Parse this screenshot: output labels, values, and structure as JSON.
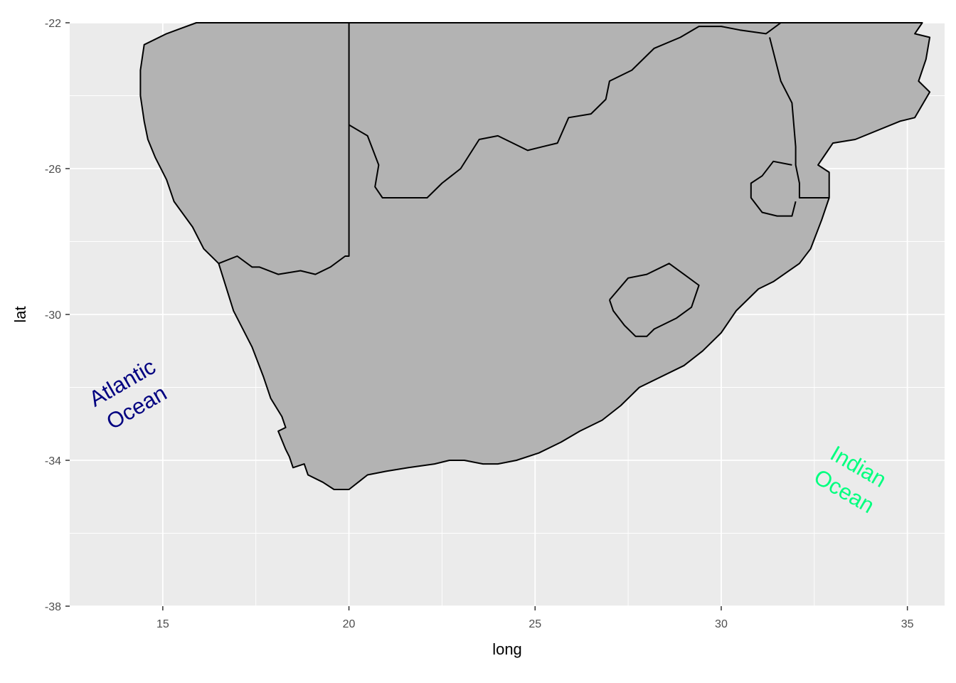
{
  "chart_data": {
    "type": "map",
    "xlabel": "long",
    "ylabel": "lat",
    "xlim": [
      12.5,
      36.0
    ],
    "ylim": [
      -38,
      -22
    ],
    "x_ticks": [
      15,
      20,
      25,
      30,
      35
    ],
    "x_tick_labels": [
      "15",
      "20",
      "25",
      "30",
      "35"
    ],
    "y_ticks": [
      -22,
      -26,
      -30,
      -34,
      -38
    ],
    "y_tick_labels": [
      "-22",
      "-26",
      "-30",
      "-34",
      "-38"
    ],
    "grid": true,
    "panel_background": "#ebebeb",
    "land_fill": "#b3b3b3",
    "border_color": "#000000",
    "annotations": [
      {
        "lines": [
          "Atlantic",
          "Ocean"
        ],
        "long": 14.1,
        "lat": -32.2,
        "angle": 30,
        "color": "#000080"
      },
      {
        "lines": [
          "Indian",
          "Ocean"
        ],
        "long": 33.5,
        "lat": -34.5,
        "angle": -30,
        "color": "#00ff7f"
      }
    ],
    "land_outline": [
      [
        15.9,
        -22
      ],
      [
        17.4,
        -22
      ],
      [
        19.8,
        -22
      ],
      [
        21.0,
        -22
      ],
      [
        23.0,
        -22
      ],
      [
        28.0,
        -22
      ],
      [
        29.2,
        -22
      ],
      [
        30.6,
        -22
      ],
      [
        31.6,
        -22
      ],
      [
        33.5,
        -22
      ],
      [
        35.4,
        -22
      ],
      [
        35.2,
        -22.3
      ],
      [
        35.6,
        -22.4
      ],
      [
        35.5,
        -23.0
      ],
      [
        35.3,
        -23.6
      ],
      [
        35.6,
        -23.9
      ],
      [
        35.2,
        -24.6
      ],
      [
        34.8,
        -24.7
      ],
      [
        33.6,
        -25.2
      ],
      [
        33.0,
        -25.3
      ],
      [
        32.8,
        -25.6
      ],
      [
        32.6,
        -25.9
      ],
      [
        32.9,
        -26.1
      ],
      [
        32.9,
        -26.8
      ],
      [
        32.7,
        -27.4
      ],
      [
        32.4,
        -28.2
      ],
      [
        32.1,
        -28.6
      ],
      [
        31.4,
        -29.1
      ],
      [
        31.0,
        -29.3
      ],
      [
        30.4,
        -29.9
      ],
      [
        30.0,
        -30.5
      ],
      [
        29.5,
        -31.0
      ],
      [
        29.0,
        -31.4
      ],
      [
        27.8,
        -32.0
      ],
      [
        27.3,
        -32.5
      ],
      [
        26.8,
        -32.9
      ],
      [
        26.2,
        -33.2
      ],
      [
        25.7,
        -33.5
      ],
      [
        25.1,
        -33.8
      ],
      [
        24.5,
        -34.0
      ],
      [
        24.0,
        -34.1
      ],
      [
        23.6,
        -34.1
      ],
      [
        23.1,
        -34.0
      ],
      [
        22.7,
        -34.0
      ],
      [
        22.3,
        -34.1
      ],
      [
        21.6,
        -34.2
      ],
      [
        21.0,
        -34.3
      ],
      [
        20.5,
        -34.4
      ],
      [
        20.0,
        -34.8
      ],
      [
        19.6,
        -34.8
      ],
      [
        19.3,
        -34.6
      ],
      [
        18.9,
        -34.4
      ],
      [
        18.8,
        -34.1
      ],
      [
        18.5,
        -34.2
      ],
      [
        18.4,
        -33.9
      ],
      [
        18.3,
        -33.7
      ],
      [
        18.1,
        -33.2
      ],
      [
        18.3,
        -33.1
      ],
      [
        18.2,
        -32.8
      ],
      [
        17.9,
        -32.3
      ],
      [
        17.7,
        -31.7
      ],
      [
        17.4,
        -30.9
      ],
      [
        16.9,
        -29.9
      ],
      [
        16.5,
        -28.6
      ],
      [
        16.1,
        -28.2
      ],
      [
        15.8,
        -27.6
      ],
      [
        15.3,
        -26.9
      ],
      [
        15.1,
        -26.3
      ],
      [
        14.8,
        -25.7
      ],
      [
        14.6,
        -25.2
      ],
      [
        14.5,
        -24.7
      ],
      [
        14.4,
        -24.0
      ],
      [
        14.4,
        -23.3
      ],
      [
        14.5,
        -22.6
      ],
      [
        15.1,
        -22.3
      ]
    ],
    "borders": [
      [
        [
          16.5,
          -28.6
        ],
        [
          17.0,
          -28.4
        ],
        [
          17.4,
          -28.7
        ],
        [
          17.6,
          -28.7
        ],
        [
          18.1,
          -28.9
        ],
        [
          18.7,
          -28.8
        ],
        [
          19.1,
          -28.9
        ],
        [
          19.5,
          -28.7
        ],
        [
          19.9,
          -28.4
        ],
        [
          20.0,
          -28.4
        ],
        [
          20.0,
          -24.8
        ],
        [
          20.0,
          -22.0
        ],
        [
          21.0,
          -22.0
        ]
      ],
      [
        [
          20.0,
          -24.8
        ],
        [
          20.5,
          -25.1
        ],
        [
          20.8,
          -25.9
        ],
        [
          20.7,
          -26.5
        ],
        [
          20.9,
          -26.8
        ],
        [
          21.7,
          -26.8
        ],
        [
          22.1,
          -26.8
        ],
        [
          22.5,
          -26.4
        ],
        [
          23.0,
          -26.0
        ],
        [
          23.5,
          -25.2
        ],
        [
          24.0,
          -25.1
        ],
        [
          24.4,
          -25.3
        ],
        [
          24.8,
          -25.5
        ],
        [
          25.2,
          -25.4
        ],
        [
          25.6,
          -25.3
        ],
        [
          25.9,
          -24.6
        ],
        [
          26.5,
          -24.5
        ],
        [
          26.9,
          -24.1
        ],
        [
          27.0,
          -23.6
        ],
        [
          27.6,
          -23.3
        ],
        [
          28.2,
          -22.7
        ],
        [
          28.9,
          -22.4
        ],
        [
          29.4,
          -22.1
        ],
        [
          29.6,
          -22.1
        ],
        [
          30.0,
          -22.1
        ],
        [
          30.5,
          -22.2
        ],
        [
          31.2,
          -22.3
        ],
        [
          31.6,
          -22.0
        ]
      ],
      [
        [
          31.3,
          -22.4
        ],
        [
          31.6,
          -23.6
        ],
        [
          31.9,
          -24.2
        ],
        [
          32.0,
          -25.4
        ],
        [
          32.0,
          -25.9
        ],
        [
          32.1,
          -26.4
        ],
        [
          32.1,
          -26.8
        ],
        [
          32.9,
          -26.8
        ]
      ],
      [
        [
          31.9,
          -25.9
        ],
        [
          31.4,
          -25.8
        ],
        [
          31.1,
          -26.2
        ],
        [
          30.8,
          -26.4
        ],
        [
          30.8,
          -26.8
        ],
        [
          31.1,
          -27.2
        ],
        [
          31.5,
          -27.3
        ],
        [
          31.9,
          -27.3
        ],
        [
          32.0,
          -26.9
        ]
      ],
      [
        [
          27.0,
          -29.6
        ],
        [
          27.5,
          -29.0
        ],
        [
          28.0,
          -28.9
        ],
        [
          28.6,
          -28.6
        ],
        [
          29.0,
          -28.9
        ],
        [
          29.4,
          -29.2
        ],
        [
          29.2,
          -29.8
        ],
        [
          28.8,
          -30.1
        ],
        [
          28.2,
          -30.4
        ],
        [
          28.0,
          -30.6
        ],
        [
          27.7,
          -30.6
        ],
        [
          27.4,
          -30.3
        ],
        [
          27.1,
          -29.9
        ],
        [
          27.0,
          -29.6
        ]
      ]
    ]
  }
}
